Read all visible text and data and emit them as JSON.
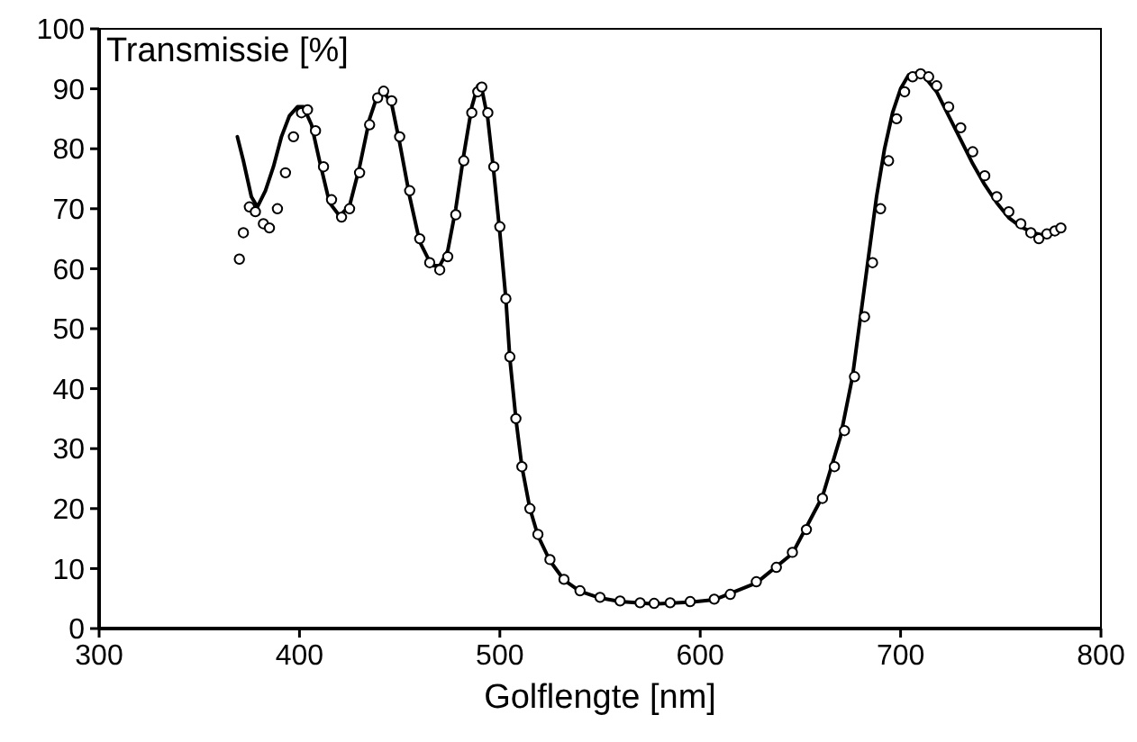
{
  "chart_data": {
    "type": "line",
    "ylabel": "Transmissie [%]",
    "xlabel": "Golflengte [nm]",
    "xlim": [
      300,
      800
    ],
    "xticks": [
      300,
      400,
      500,
      600,
      700,
      800
    ],
    "ylim": [
      0,
      100
    ],
    "yticks": [
      0,
      10,
      20,
      30,
      40,
      50,
      60,
      70,
      80,
      90,
      100
    ],
    "grid": false,
    "series": [
      {
        "color": "#000000",
        "marker": "none",
        "line_style": "solid",
        "x": [
          369,
          372,
          376,
          379,
          383,
          387,
          391,
          395,
          399,
          402,
          406,
          410,
          415,
          420,
          425,
          430,
          435,
          439,
          442,
          446,
          450,
          455,
          460,
          466,
          470,
          474,
          478,
          482,
          486,
          489,
          491,
          494,
          497,
          500,
          503,
          505,
          508,
          511,
          515,
          519,
          525,
          532,
          540,
          550,
          560,
          577,
          595,
          607,
          628,
          646,
          661,
          670,
          676,
          680,
          684,
          688,
          692,
          696,
          700,
          704,
          708,
          712,
          718,
          724,
          730,
          736,
          742,
          748,
          754,
          760,
          766,
          772,
          778
        ],
        "values": [
          82,
          78,
          72,
          70.3,
          73,
          77,
          82,
          85.5,
          87,
          87,
          84,
          78,
          71,
          68.8,
          70.5,
          77,
          85,
          89,
          89.5,
          87.5,
          81,
          72,
          64.5,
          60.5,
          60.5,
          63,
          70,
          79,
          87,
          90.5,
          90,
          85,
          76,
          66,
          55,
          45,
          35,
          27,
          20,
          15.5,
          11.3,
          8.1,
          6.2,
          5.1,
          4.5,
          4.1,
          4.4,
          4.8,
          7.6,
          12.5,
          22,
          32,
          42,
          52,
          62,
          72,
          80,
          86,
          90,
          92.3,
          92.6,
          92,
          89.5,
          85.5,
          81.5,
          77.5,
          74,
          71,
          68.5,
          67,
          66,
          65.5,
          66
        ]
      },
      {
        "type": "scatter",
        "color": "#000000",
        "marker": "circle",
        "x": [
          370,
          372,
          375,
          378,
          382,
          385,
          389,
          393,
          397,
          401,
          404,
          408,
          412,
          416,
          421,
          425,
          430,
          435,
          439,
          442,
          446,
          450,
          455,
          460,
          465,
          470,
          474,
          478,
          482,
          486,
          489,
          491,
          494,
          497,
          500,
          503,
          505,
          508,
          511,
          515,
          519,
          525,
          532,
          540,
          550,
          560,
          570,
          577,
          585,
          595,
          607,
          615,
          628,
          638,
          646,
          653,
          661,
          667,
          672,
          677,
          682,
          686,
          690,
          694,
          698,
          702,
          706,
          710,
          714,
          718,
          724,
          730,
          736,
          742,
          748,
          754,
          760,
          765,
          769,
          773,
          777,
          780
        ],
        "values": [
          61.6,
          66,
          70.3,
          69.5,
          67.5,
          66.8,
          70,
          76,
          82,
          86,
          86.5,
          83,
          77,
          71.5,
          68.6,
          70,
          76,
          84,
          88.5,
          89.6,
          88,
          82,
          73,
          65,
          61,
          59.8,
          62,
          69,
          78,
          86,
          89.5,
          90.3,
          86,
          77,
          67,
          55,
          45.3,
          35,
          27,
          20,
          15.7,
          11.5,
          8.2,
          6.3,
          5.2,
          4.6,
          4.3,
          4.2,
          4.3,
          4.5,
          4.9,
          5.7,
          7.8,
          10.2,
          12.7,
          16.5,
          21.7,
          27,
          33,
          42,
          52,
          61,
          70,
          78,
          85,
          89.5,
          92,
          92.5,
          92,
          90.5,
          87,
          83.5,
          79.5,
          75.5,
          72,
          69.5,
          67.5,
          66,
          65,
          65.8,
          66.3,
          66.8
        ]
      }
    ]
  }
}
